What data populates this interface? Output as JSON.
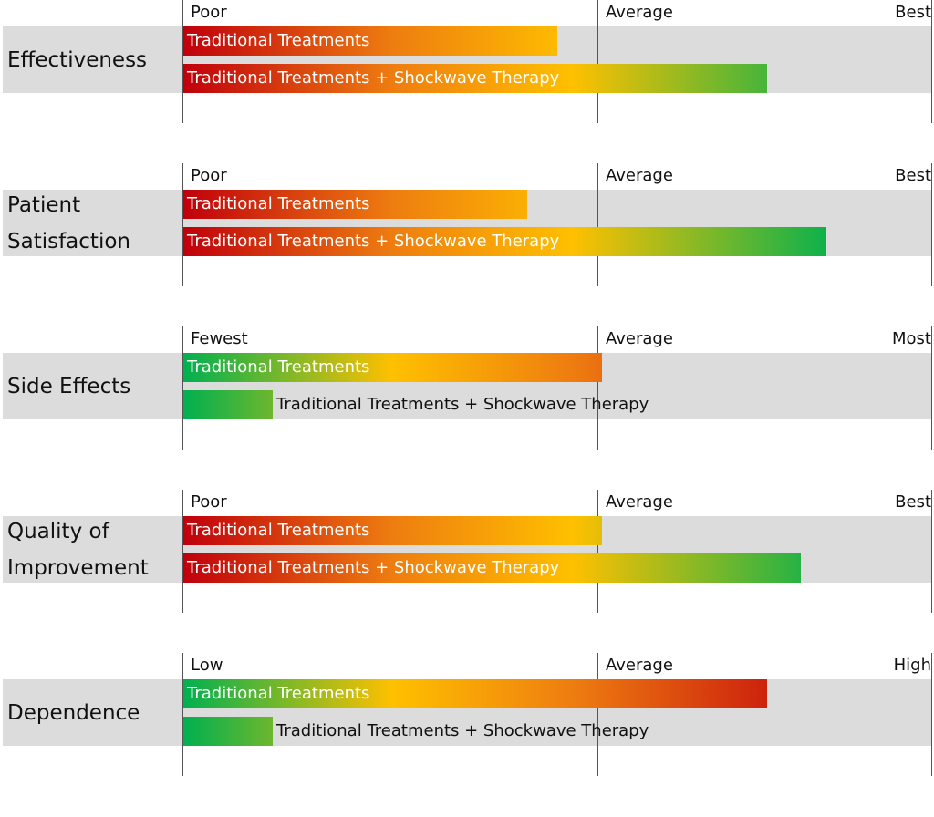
{
  "colors": {
    "red": "#c0000c",
    "orange": "#ee7d10",
    "yellow": "#ffc000",
    "green": "#00b050"
  },
  "chart_data": [
    {
      "type": "bar",
      "title": "Effectiveness",
      "scale_labels": [
        "Poor",
        "Average",
        "Best"
      ],
      "xlim": [
        0,
        100
      ],
      "gradient": "red-to-green",
      "series": [
        {
          "name": "Traditional Treatments",
          "value": 50
        },
        {
          "name": "Traditional Treatments + Shockwave Therapy",
          "value": 78
        }
      ]
    },
    {
      "type": "bar",
      "title": "Patient Satisfaction",
      "scale_labels": [
        "Poor",
        "Average",
        "Best"
      ],
      "xlim": [
        0,
        100
      ],
      "gradient": "red-to-green",
      "series": [
        {
          "name": "Traditional Treatments",
          "value": 46
        },
        {
          "name": "Traditional Treatments + Shockwave Therapy",
          "value": 86
        }
      ]
    },
    {
      "type": "bar",
      "title": "Side Effects",
      "scale_labels": [
        "Fewest",
        "Average",
        "Most"
      ],
      "xlim": [
        0,
        100
      ],
      "gradient": "green-to-red",
      "series": [
        {
          "name": "Traditional Treatments",
          "value": 56
        },
        {
          "name": "Traditional Treatments + Shockwave Therapy",
          "value": 12
        }
      ]
    },
    {
      "type": "bar",
      "title": "Quality of Improvement",
      "scale_labels": [
        "Poor",
        "Average",
        "Best"
      ],
      "xlim": [
        0,
        100
      ],
      "gradient": "red-to-green",
      "series": [
        {
          "name": "Traditional Treatments",
          "value": 56
        },
        {
          "name": "Traditional Treatments + Shockwave Therapy",
          "value": 82.5
        }
      ]
    },
    {
      "type": "bar",
      "title": "Dependence",
      "scale_labels": [
        "Low",
        "Average",
        "High"
      ],
      "xlim": [
        0,
        100
      ],
      "gradient": "green-to-red",
      "series": [
        {
          "name": "Traditional Treatments",
          "value": 78
        },
        {
          "name": "Traditional Treatments + Shockwave Therapy",
          "value": 12
        }
      ]
    }
  ]
}
